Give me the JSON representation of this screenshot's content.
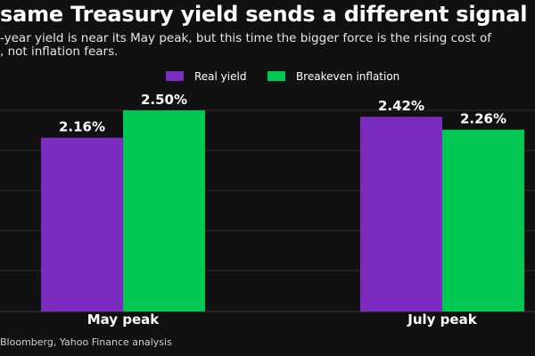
{
  "chart_data": {
    "type": "bar",
    "title": "same Treasury yield sends a different signal",
    "subtitle_lines": [
      "-year yield is near its May peak, but this time the bigger force is the rising cost of",
      ", not inflation fears."
    ],
    "categories": [
      "May peak",
      "July peak"
    ],
    "series": [
      {
        "name": "Real yield",
        "color": "#7b2cbf",
        "values": [
          2.16,
          2.42
        ],
        "labels": [
          "2.16%",
          "2.42%"
        ]
      },
      {
        "name": "Breakeven inflation",
        "color": "#00c853",
        "values": [
          2.5,
          2.26
        ],
        "labels": [
          "2.50%",
          "2.26%"
        ]
      }
    ],
    "ylim": [
      0,
      2.5
    ],
    "grid": true,
    "legend_position": "top-center",
    "source": "Bloomberg, Yahoo Finance analysis"
  }
}
